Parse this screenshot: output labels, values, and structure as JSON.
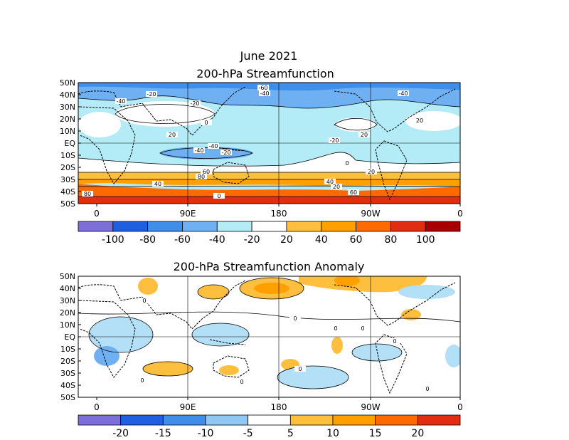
{
  "page": {
    "month_title": "June 2021"
  },
  "top_panel": {
    "title": "200-hPa Streamfunction",
    "lat_labels": [
      "50N",
      "40N",
      "30N",
      "20N",
      "10N",
      "EQ",
      "10S",
      "20S",
      "30S",
      "40S",
      "50S"
    ],
    "lon_labels": [
      "0",
      "90E",
      "180",
      "90W",
      "0"
    ],
    "contour_labels": [
      "-20",
      "-40",
      "-40",
      "-60",
      "-40",
      "-20",
      "0",
      "20",
      "-40",
      "20",
      "-20",
      "20",
      "0",
      "20",
      "40",
      "60",
      "80",
      "40",
      "60",
      "80",
      "0",
      "20",
      "-20",
      "-40"
    ],
    "colorbar": {
      "labels": [
        "-100",
        "-80",
        "-60",
        "-40",
        "-20",
        "20",
        "40",
        "60",
        "80",
        "100"
      ],
      "colors": [
        "#7d6fd8",
        "#1f5fe0",
        "#3f8ee8",
        "#6fb0f2",
        "#b3ecf6",
        "#ffffff",
        "#ffbf3e",
        "#ffa000",
        "#ff6a00",
        "#e12e12",
        "#a80000"
      ]
    }
  },
  "bottom_panel": {
    "title": "200-hPa Streamfunction Anomaly",
    "lat_labels": [
      "50N",
      "40N",
      "30N",
      "20N",
      "10N",
      "EQ",
      "10S",
      "20S",
      "30S",
      "40S",
      "50S"
    ],
    "lon_labels": [
      "0",
      "90E",
      "180",
      "90W",
      "0"
    ],
    "contour_labels": [
      "0",
      "0",
      "0",
      "0",
      "0",
      "0",
      "0",
      "0",
      "0"
    ],
    "colorbar": {
      "labels": [
        "-20",
        "-15",
        "-10",
        "-5",
        "5",
        "10",
        "15",
        "20"
      ],
      "colors": [
        "#7d6fd8",
        "#1f5fe0",
        "#3f8ee8",
        "#8fc8f4",
        "#ffffff",
        "#ffbf3e",
        "#ffa000",
        "#ff6a00",
        "#e12e12"
      ]
    }
  }
}
